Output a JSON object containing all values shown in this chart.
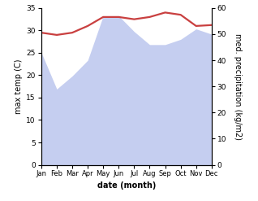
{
  "months": [
    "Jan",
    "Feb",
    "Mar",
    "Apr",
    "May",
    "Jun",
    "Jul",
    "Aug",
    "Sep",
    "Oct",
    "Nov",
    "Dec"
  ],
  "x": [
    0,
    1,
    2,
    3,
    4,
    5,
    6,
    7,
    8,
    9,
    10,
    11
  ],
  "temp": [
    29.5,
    29.0,
    29.5,
    31.0,
    33.0,
    33.0,
    32.5,
    33.0,
    34.0,
    33.5,
    31.0,
    31.2
  ],
  "precip": [
    43,
    29,
    34,
    40,
    57,
    57,
    51,
    46,
    46,
    48,
    52,
    50
  ],
  "temp_color": "#c94040",
  "precip_fill_color": "#c5cef0",
  "bg_color": "#ffffff",
  "xlabel": "date (month)",
  "ylabel_left": "max temp (C)",
  "ylabel_right": "med. precipitation (kg/m2)",
  "ylim_left": [
    0,
    35
  ],
  "ylim_right": [
    0,
    60
  ],
  "yticks_left": [
    0,
    5,
    10,
    15,
    20,
    25,
    30,
    35
  ],
  "yticks_right": [
    0,
    10,
    20,
    30,
    40,
    50,
    60
  ],
  "line_width": 1.6,
  "label_fontsize": 7,
  "tick_fontsize": 6.5,
  "month_fontsize": 6.0
}
